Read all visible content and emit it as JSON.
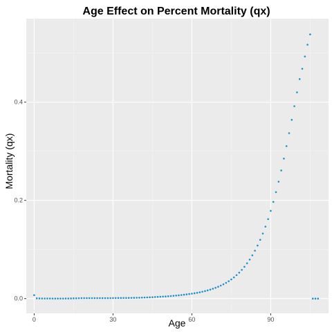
{
  "chart_data": {
    "type": "scatter",
    "title": "Age Effect on Percent Mortality (qx)",
    "xlabel": "Age",
    "ylabel": "Mortality (qx)",
    "xlim": [
      -3,
      112
    ],
    "ylim": [
      -0.03,
      0.57
    ],
    "x_ticks": [
      0,
      30,
      60,
      90
    ],
    "x_minor_ticks": [
      15,
      45,
      75,
      105
    ],
    "y_ticks": [
      0.0,
      0.2,
      0.4
    ],
    "y_tick_labels": [
      "0.0",
      "0.2",
      "0.4"
    ],
    "y_minor_ticks": [
      0.1,
      0.3,
      0.5
    ],
    "grid": true,
    "background": "#ebebeb",
    "grid_color": "#ffffff",
    "point_color": "#1f8fc6",
    "series": [
      {
        "x": [
          0,
          1,
          2,
          3,
          4,
          5,
          6,
          7,
          8,
          9,
          10,
          11,
          12,
          13,
          14,
          15,
          16,
          17,
          18,
          19,
          20,
          21,
          22,
          23,
          24,
          25,
          26,
          27,
          28,
          29,
          30,
          31,
          32,
          33,
          34,
          35,
          36,
          37,
          38,
          39,
          40,
          41,
          42,
          43,
          44,
          45,
          46,
          47,
          48,
          49,
          50,
          51,
          52,
          53,
          54,
          55,
          56,
          57,
          58,
          59,
          60,
          61,
          62,
          63,
          64,
          65,
          66,
          67,
          68,
          69,
          70,
          71,
          72,
          73,
          74,
          75,
          76,
          77,
          78,
          79,
          80,
          81,
          82,
          83,
          84,
          85,
          86,
          87,
          88,
          89,
          90,
          91,
          92,
          93,
          94,
          95,
          96,
          97,
          98,
          99,
          100,
          101,
          102,
          103,
          104,
          105,
          106,
          107,
          108,
          109
        ],
        "y": [
          0.007,
          0.0005,
          0.0003,
          0.0002,
          0.0002,
          0.0002,
          0.0002,
          0.0001,
          0.0001,
          0.0001,
          0.0001,
          0.0001,
          0.0002,
          0.0002,
          0.0003,
          0.0005,
          0.0006,
          0.0008,
          0.0009,
          0.001,
          0.001,
          0.001,
          0.001,
          0.001,
          0.001,
          0.001,
          0.001,
          0.001,
          0.001,
          0.001,
          0.0011,
          0.0011,
          0.0012,
          0.0012,
          0.0013,
          0.0013,
          0.0014,
          0.0015,
          0.0016,
          0.0017,
          0.0018,
          0.002,
          0.0022,
          0.0024,
          0.0026,
          0.0029,
          0.0032,
          0.0035,
          0.0038,
          0.0041,
          0.0044,
          0.0048,
          0.0052,
          0.0057,
          0.0062,
          0.0067,
          0.0073,
          0.0079,
          0.0086,
          0.0093,
          0.0101,
          0.0109,
          0.0118,
          0.0128,
          0.014,
          0.0153,
          0.0167,
          0.0183,
          0.0201,
          0.022,
          0.0241,
          0.0265,
          0.0291,
          0.0321,
          0.0354,
          0.0391,
          0.0432,
          0.0478,
          0.0529,
          0.0585,
          0.0648,
          0.0718,
          0.0795,
          0.0881,
          0.0976,
          0.1081,
          0.1197,
          0.1325,
          0.1465,
          0.1619,
          0.1787,
          0.197,
          0.2168,
          0.2381,
          0.2609,
          0.2851,
          0.3105,
          0.3369,
          0.3641,
          0.3918,
          0.42,
          0.447,
          0.468,
          0.493,
          0.517,
          0.538,
          0.0,
          0.0,
          0.0,
          0.0
        ],
        "n": 109
      }
    ]
  }
}
